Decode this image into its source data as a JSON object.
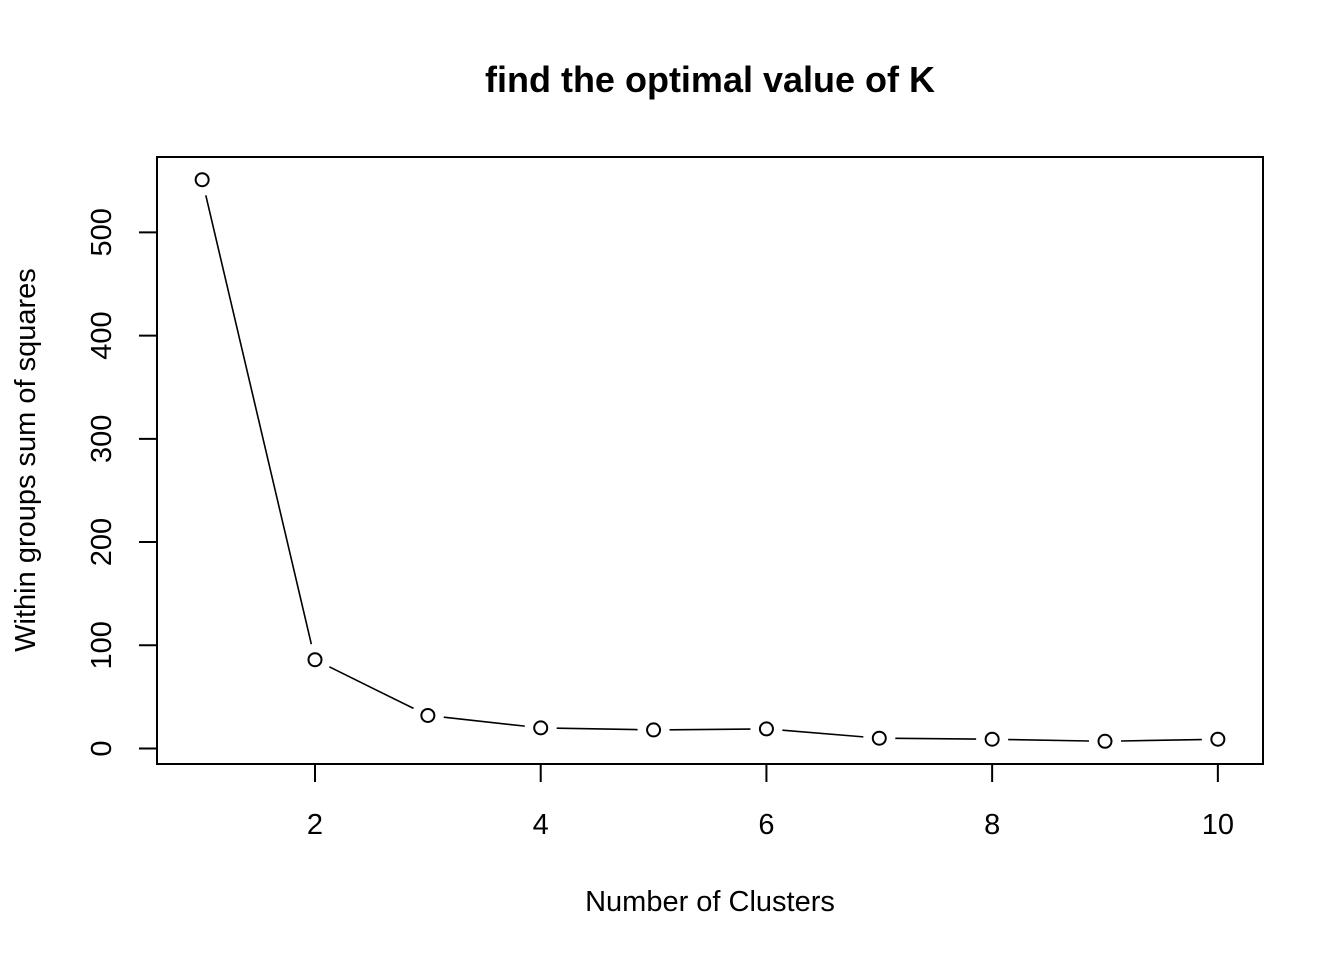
{
  "chart_data": {
    "type": "line",
    "title": "find the optimal value of K",
    "xlabel": "Number of Clusters",
    "ylabel": "Within groups sum of squares",
    "x": [
      1,
      2,
      3,
      4,
      5,
      6,
      7,
      8,
      9,
      10
    ],
    "series": [
      {
        "values": [
          551,
          86,
          32,
          20,
          18,
          19,
          10,
          9,
          7,
          9
        ]
      }
    ],
    "xlim": [
      0.6,
      10.4
    ],
    "ylim": [
      -15,
      573
    ],
    "xticks": [
      2,
      4,
      6,
      8,
      10
    ],
    "yticks": [
      0,
      100,
      200,
      300,
      400,
      500
    ],
    "marker": "open-circle",
    "line_style": "overplotted-gaps",
    "grid": false,
    "legend": false,
    "colors": {
      "line": "#000000",
      "marker": "#000000",
      "background": "#ffffff"
    }
  }
}
